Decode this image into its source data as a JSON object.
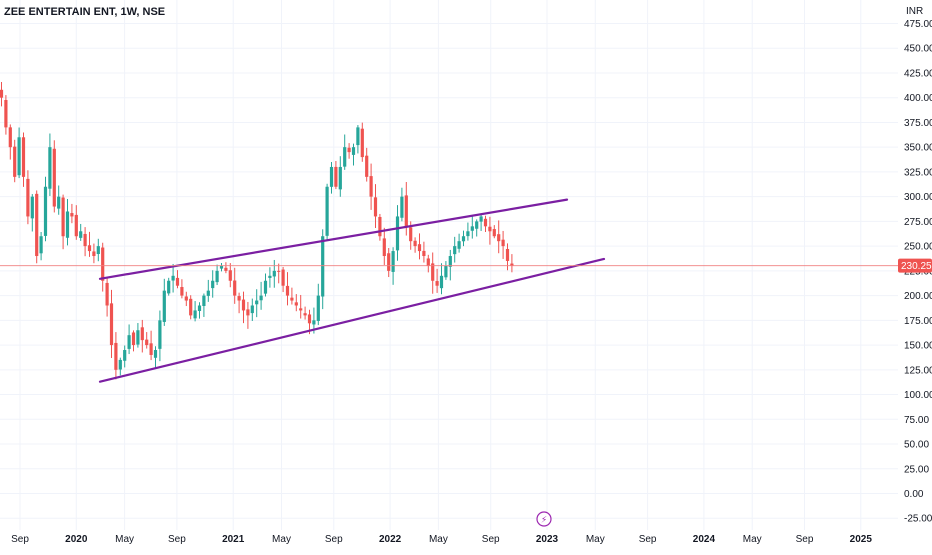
{
  "header": {
    "title": "ZEE ENTERTAIN ENT, 1W, NSE"
  },
  "colors": {
    "up": "#26a69a",
    "down": "#ef5350",
    "channel": "#7b1fa2",
    "price_line": "#f08080",
    "price_label_bg": "#ef5350",
    "grid": "#f0f3fa",
    "axis_text": "#131722",
    "event_icon": "#9c27b0"
  },
  "price_axis": {
    "currency": "INR",
    "current_price": "230.25",
    "current_price_value": 230.25
  },
  "event_icon": {
    "name": "lightning-icon",
    "glyph": "⚡"
  },
  "chart_data": {
    "type": "candlestick",
    "title": "ZEE ENTERTAIN ENT, 1W, NSE",
    "ylabel": "INR",
    "ylim": [
      -25,
      480
    ],
    "yticks": [
      "475.00",
      "450.00",
      "425.00",
      "400.00",
      "375.00",
      "350.00",
      "325.00",
      "300.00",
      "275.00",
      "250.00",
      "225.00",
      "200.00",
      "175.00",
      "150.00",
      "125.00",
      "100.00",
      "75.00",
      "50.00",
      "25.00",
      "0.00",
      "-25.00"
    ],
    "xticks": [
      {
        "label": "Sep",
        "bold": false
      },
      {
        "label": "2020",
        "bold": true
      },
      {
        "label": "May",
        "bold": false
      },
      {
        "label": "Sep",
        "bold": false
      },
      {
        "label": "2021",
        "bold": true
      },
      {
        "label": "May",
        "bold": false
      },
      {
        "label": "Sep",
        "bold": false
      },
      {
        "label": "2022",
        "bold": true
      },
      {
        "label": "May",
        "bold": false
      },
      {
        "label": "Sep",
        "bold": false
      },
      {
        "label": "2023",
        "bold": true
      },
      {
        "label": "May",
        "bold": false
      },
      {
        "label": "Sep",
        "bold": false
      },
      {
        "label": "2024",
        "bold": true
      },
      {
        "label": "May",
        "bold": false
      },
      {
        "label": "Sep",
        "bold": false
      },
      {
        "label": "2025",
        "bold": true
      }
    ],
    "closes": [
      400,
      370,
      350,
      320,
      360,
      320,
      280,
      300,
      240,
      260,
      310,
      350,
      290,
      300,
      260,
      285,
      280,
      260,
      265,
      250,
      245,
      240,
      250,
      215,
      190,
      150,
      125,
      135,
      145,
      160,
      150,
      165,
      155,
      150,
      140,
      145,
      175,
      205,
      215,
      220,
      210,
      200,
      195,
      180,
      185,
      190,
      200,
      205,
      215,
      225,
      230,
      225,
      215,
      200,
      195,
      185,
      180,
      190,
      195,
      200,
      215,
      220,
      225,
      225,
      210,
      200,
      195,
      190,
      185,
      180,
      172,
      175,
      200,
      260,
      310,
      330,
      310,
      330,
      350,
      345,
      350,
      370,
      340,
      320,
      300,
      280,
      260,
      240,
      225,
      245,
      280,
      300,
      270,
      255,
      250,
      245,
      240,
      230,
      215,
      210,
      220,
      230,
      240,
      250,
      255,
      260,
      265,
      270,
      275,
      280,
      270,
      265,
      260,
      255,
      250,
      235,
      230
    ],
    "channel_upper": [
      {
        "x": 100,
        "y": 217
      },
      {
        "x": 567,
        "y": 297
      }
    ],
    "channel_lower": [
      {
        "x": 100,
        "y": 113
      },
      {
        "x": 604,
        "y": 237
      }
    ]
  }
}
